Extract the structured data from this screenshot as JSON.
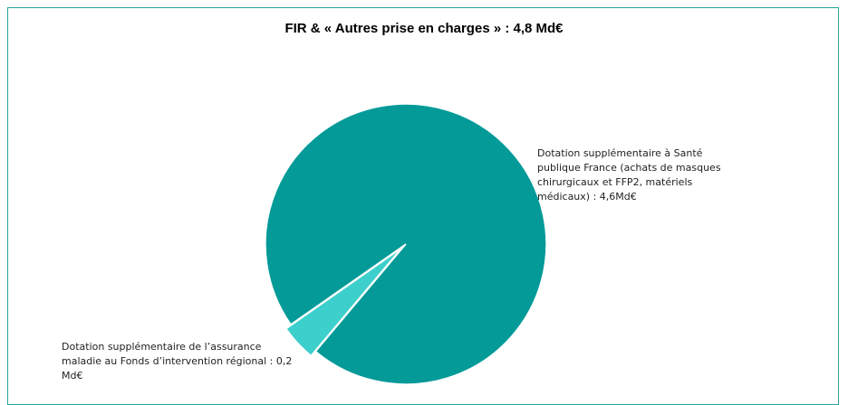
{
  "chart_data": {
    "type": "pie",
    "title": "FIR & « Autres prise en charges »  : 4,8 Md€",
    "categories": [
      "Dotation supplémentaire à Santé publique France (achats de masques chirurgicaux et FFP2, matériels médicaux) : 4,6Md€",
      "Dotation supplémentaire de l’assurance maladie au Fonds d’intervention régional  : 0,2 Md€"
    ],
    "values": [
      4.6,
      0.2
    ],
    "colors": [
      "#039a98",
      "#3ccfcb"
    ]
  }
}
